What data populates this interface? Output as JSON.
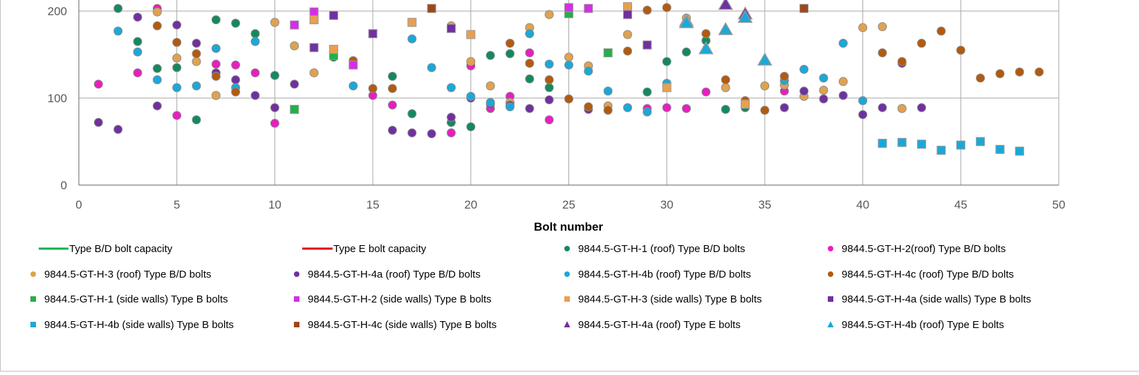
{
  "chart_data": {
    "type": "scatter",
    "xlabel": "Bolt number",
    "ylabel": "",
    "title": "",
    "xlim": [
      0,
      50
    ],
    "ylim": [
      0,
      200
    ],
    "xticks": [
      0,
      5,
      10,
      15,
      20,
      25,
      30,
      35,
      40,
      45,
      50
    ],
    "yticks": [
      0,
      100,
      200
    ],
    "grid": true,
    "legend_placement": "bottom",
    "legend_columns": 4,
    "series": [
      {
        "name": "Type B/D bolt capacity",
        "kind": "line",
        "color": "#00b050",
        "points": []
      },
      {
        "name": "Type E bolt capacity",
        "kind": "line",
        "color": "#e00000",
        "points": []
      },
      {
        "name": "9844.5-GT-H-1 (roof) Type B/D bolts",
        "kind": "marker",
        "shape": "circle",
        "color": "#138a5c",
        "points": [
          [
            2,
            203
          ],
          [
            3,
            165
          ],
          [
            4,
            134
          ],
          [
            5,
            135
          ],
          [
            6,
            75
          ],
          [
            7,
            190
          ],
          [
            8,
            186
          ],
          [
            9,
            174
          ],
          [
            10,
            126
          ],
          [
            13,
            147
          ],
          [
            16,
            125
          ],
          [
            17,
            82
          ],
          [
            19,
            72
          ],
          [
            20,
            67
          ],
          [
            21,
            149
          ],
          [
            22,
            151
          ],
          [
            23,
            122
          ],
          [
            24,
            112
          ],
          [
            29,
            107
          ],
          [
            30,
            142
          ],
          [
            31,
            153
          ],
          [
            32,
            166
          ],
          [
            33,
            87
          ],
          [
            34,
            89
          ]
        ]
      },
      {
        "name": "9844.5-GT-H-2(roof) Type B/D bolts",
        "kind": "marker",
        "shape": "circle",
        "color": "#e81ec0",
        "points": [
          [
            1,
            116
          ],
          [
            3,
            129
          ],
          [
            4,
            203
          ],
          [
            5,
            80
          ],
          [
            7,
            139
          ],
          [
            8,
            138
          ],
          [
            9,
            129
          ],
          [
            10,
            71
          ],
          [
            15,
            103
          ],
          [
            16,
            92
          ],
          [
            19,
            60
          ],
          [
            20,
            137
          ],
          [
            21,
            88
          ],
          [
            22,
            102
          ],
          [
            23,
            152
          ],
          [
            24,
            75
          ],
          [
            29,
            88
          ],
          [
            30,
            89
          ],
          [
            31,
            88
          ],
          [
            32,
            107
          ],
          [
            36,
            108
          ]
        ]
      },
      {
        "name": "9844.5-GT-H-3 (roof) Type B/D bolts",
        "kind": "marker",
        "shape": "circle",
        "color": "#e0a24e",
        "points": [
          [
            4,
            199
          ],
          [
            5,
            146
          ],
          [
            6,
            142
          ],
          [
            7,
            103
          ],
          [
            10,
            187
          ],
          [
            11,
            160
          ],
          [
            12,
            129
          ],
          [
            19,
            183
          ],
          [
            20,
            142
          ],
          [
            21,
            114
          ],
          [
            22,
            95
          ],
          [
            23,
            181
          ],
          [
            24,
            196
          ],
          [
            25,
            147
          ],
          [
            26,
            137
          ],
          [
            27,
            91
          ],
          [
            28,
            173
          ],
          [
            31,
            192
          ],
          [
            33,
            112
          ],
          [
            34,
            94
          ],
          [
            35,
            114
          ],
          [
            36,
            115
          ],
          [
            37,
            102
          ],
          [
            38,
            109
          ],
          [
            39,
            119
          ],
          [
            40,
            181
          ],
          [
            41,
            182
          ],
          [
            42,
            88
          ]
        ]
      },
      {
        "name": "9844.5-GT-H-4a (roof) Type B/D bolts",
        "kind": "marker",
        "shape": "circle",
        "color": "#7030a0",
        "points": [
          [
            1,
            72
          ],
          [
            2,
            64
          ],
          [
            3,
            193
          ],
          [
            4,
            91
          ],
          [
            5,
            184
          ],
          [
            6,
            163
          ],
          [
            7,
            129
          ],
          [
            8,
            121
          ],
          [
            9,
            103
          ],
          [
            10,
            89
          ],
          [
            11,
            116
          ],
          [
            16,
            63
          ],
          [
            17,
            60
          ],
          [
            18,
            59
          ],
          [
            19,
            78
          ],
          [
            20,
            100
          ],
          [
            21,
            93
          ],
          [
            22,
            92
          ],
          [
            23,
            88
          ],
          [
            24,
            98
          ],
          [
            26,
            87
          ],
          [
            36,
            89
          ],
          [
            37,
            108
          ],
          [
            38,
            99
          ],
          [
            39,
            103
          ],
          [
            40,
            81
          ],
          [
            41,
            89
          ],
          [
            42,
            140
          ],
          [
            43,
            89
          ]
        ]
      },
      {
        "name": "9844.5-GT-H-4b (roof) Type B/D bolts",
        "kind": "marker",
        "shape": "circle",
        "color": "#1ba8d8",
        "points": [
          [
            2,
            177
          ],
          [
            3,
            153
          ],
          [
            4,
            121
          ],
          [
            5,
            112
          ],
          [
            6,
            114
          ],
          [
            7,
            157
          ],
          [
            8,
            112
          ],
          [
            9,
            165
          ],
          [
            12,
            191
          ],
          [
            13,
            155
          ],
          [
            14,
            114
          ],
          [
            17,
            168
          ],
          [
            18,
            135
          ],
          [
            19,
            112
          ],
          [
            20,
            102
          ],
          [
            21,
            95
          ],
          [
            22,
            90
          ],
          [
            23,
            174
          ],
          [
            24,
            139
          ],
          [
            25,
            138
          ],
          [
            26,
            131
          ],
          [
            27,
            108
          ],
          [
            28,
            89
          ],
          [
            29,
            84
          ],
          [
            30,
            117
          ],
          [
            36,
            120
          ],
          [
            37,
            133
          ],
          [
            38,
            123
          ],
          [
            39,
            163
          ],
          [
            40,
            97
          ]
        ]
      },
      {
        "name": "9844.5-GT-H-4c (roof) Type B/D bolts",
        "kind": "marker",
        "shape": "circle",
        "color": "#b35a0e",
        "points": [
          [
            4,
            183
          ],
          [
            5,
            164
          ],
          [
            6,
            151
          ],
          [
            7,
            125
          ],
          [
            8,
            107
          ],
          [
            14,
            143
          ],
          [
            15,
            111
          ],
          [
            16,
            111
          ],
          [
            22,
            163
          ],
          [
            23,
            140
          ],
          [
            24,
            121
          ],
          [
            25,
            99
          ],
          [
            26,
            90
          ],
          [
            27,
            86
          ],
          [
            28,
            154
          ],
          [
            29,
            201
          ],
          [
            30,
            204
          ],
          [
            32,
            174
          ],
          [
            33,
            121
          ],
          [
            34,
            97
          ],
          [
            35,
            86
          ],
          [
            36,
            125
          ],
          [
            41,
            152
          ],
          [
            42,
            142
          ],
          [
            43,
            163
          ],
          [
            44,
            177
          ],
          [
            45,
            155
          ],
          [
            46,
            123
          ],
          [
            47,
            128
          ],
          [
            48,
            130
          ],
          [
            49,
            130
          ]
        ]
      },
      {
        "name": "9844.5-GT-H-1 (side walls) Type B bolts",
        "kind": "marker",
        "shape": "square",
        "color": "#22b04b",
        "points": [
          [
            11,
            87
          ],
          [
            13,
            149
          ],
          [
            25,
            197
          ],
          [
            27,
            152
          ]
        ]
      },
      {
        "name": "9844.5-GT-H-2 (side walls) Type B bolts",
        "kind": "marker",
        "shape": "square",
        "color": "#d42ee8",
        "points": [
          [
            11,
            184
          ],
          [
            12,
            199
          ],
          [
            14,
            138
          ],
          [
            25,
            204
          ],
          [
            26,
            203
          ]
        ]
      },
      {
        "name": "9844.5-GT-H-3 (side walls) Type B bolts",
        "kind": "marker",
        "shape": "square",
        "color": "#e8a050",
        "points": [
          [
            12,
            190
          ],
          [
            13,
            156
          ],
          [
            17,
            187
          ],
          [
            20,
            173
          ],
          [
            28,
            205
          ],
          [
            30,
            112
          ],
          [
            34,
            93
          ]
        ]
      },
      {
        "name": "9844.5-GT-H-4a (side walls) Type B bolts",
        "kind": "marker",
        "shape": "square",
        "color": "#7030a0",
        "points": [
          [
            12,
            158
          ],
          [
            13,
            195
          ],
          [
            15,
            174
          ],
          [
            19,
            180
          ],
          [
            28,
            196
          ],
          [
            29,
            161
          ]
        ]
      },
      {
        "name": "9844.5-GT-H-4b (side walls) Type B bolts",
        "kind": "marker",
        "shape": "square",
        "color": "#1ba8d8",
        "points": [
          [
            41,
            48
          ],
          [
            42,
            49
          ],
          [
            43,
            47
          ],
          [
            44,
            40
          ],
          [
            45,
            46
          ],
          [
            46,
            50
          ],
          [
            47,
            41
          ],
          [
            48,
            39
          ]
        ]
      },
      {
        "name": "9844.5-GT-H-4c (side walls) Type B bolts",
        "kind": "marker",
        "shape": "square",
        "color": "#a0461a",
        "points": [
          [
            18,
            203
          ],
          [
            37,
            203
          ]
        ]
      },
      {
        "name": "9844.5-GT-H-4a (roof) Type E bolts",
        "kind": "marker",
        "shape": "triangle",
        "color": "#7030a0",
        "points": [
          [
            31,
            188
          ],
          [
            33,
            207
          ],
          [
            34,
            196
          ]
        ]
      },
      {
        "name": "9844.5-GT-H-4b (roof) Type E bolts",
        "kind": "marker",
        "shape": "triangle",
        "color": "#1ba8d8",
        "points": [
          [
            31,
            186
          ],
          [
            32,
            156
          ],
          [
            33,
            178
          ],
          [
            34,
            192
          ],
          [
            35,
            143
          ]
        ]
      }
    ]
  }
}
